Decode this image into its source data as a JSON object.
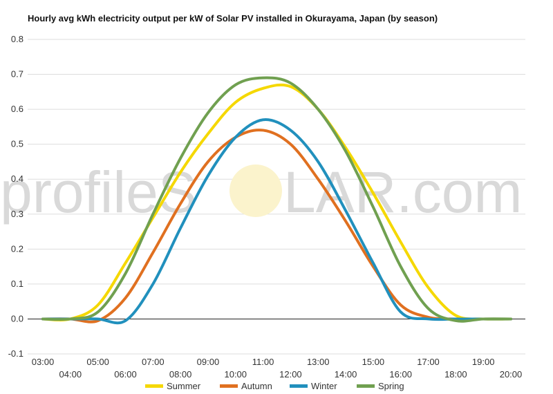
{
  "chart_data": {
    "type": "line",
    "title": "Hourly avg kWh electricity output per kW of Solar PV installed in Okurayama, Japan (by season)",
    "xlabel": "",
    "ylabel": "",
    "ylim": [
      -0.1,
      0.8
    ],
    "yticks": [
      "0.8",
      "0.7",
      "0.6",
      "0.5",
      "0.4",
      "0.3",
      "0.2",
      "0.1",
      "0.0",
      "-0.1"
    ],
    "categories": [
      "03:00",
      "04:00",
      "05:00",
      "06:00",
      "07:00",
      "08:00",
      "09:00",
      "10:00",
      "11:00",
      "12:00",
      "13:00",
      "14:00",
      "15:00",
      "16:00",
      "17:00",
      "18:00",
      "19:00",
      "20:00"
    ],
    "grid": true,
    "legend_position": "bottom",
    "series": [
      {
        "name": "Summer",
        "color": "#f5d800",
        "values": [
          0,
          0,
          0.04,
          0.16,
          0.29,
          0.42,
          0.53,
          0.62,
          0.66,
          0.665,
          0.6,
          0.49,
          0.36,
          0.22,
          0.09,
          0.01,
          0,
          0
        ]
      },
      {
        "name": "Autumn",
        "color": "#e07020",
        "values": [
          0,
          0,
          -0.005,
          0.06,
          0.19,
          0.33,
          0.45,
          0.52,
          0.54,
          0.5,
          0.4,
          0.28,
          0.15,
          0.04,
          0.005,
          0,
          0,
          0
        ]
      },
      {
        "name": "Winter",
        "color": "#2190bd",
        "values": [
          0,
          0,
          0,
          -0.005,
          0.1,
          0.26,
          0.41,
          0.52,
          0.57,
          0.54,
          0.45,
          0.31,
          0.16,
          0.02,
          0,
          0,
          0,
          0
        ]
      },
      {
        "name": "Spring",
        "color": "#70a050",
        "values": [
          0,
          0,
          0.02,
          0.13,
          0.3,
          0.46,
          0.59,
          0.67,
          0.69,
          0.675,
          0.6,
          0.48,
          0.32,
          0.15,
          0.03,
          -0.005,
          0,
          0
        ]
      }
    ]
  },
  "watermark": {
    "left": "profileS",
    "right": "LAR.com"
  }
}
